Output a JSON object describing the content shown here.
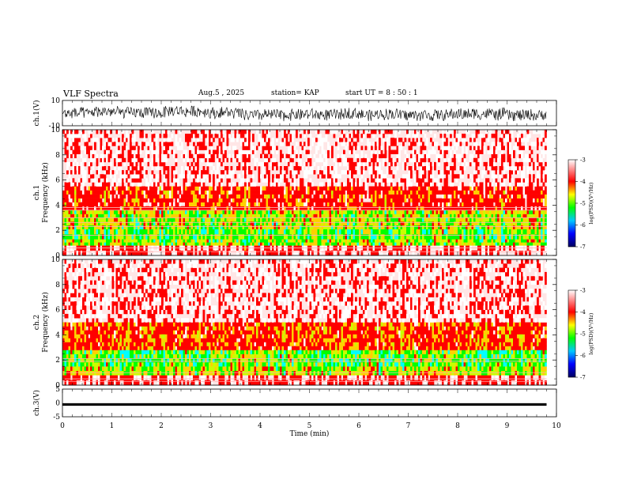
{
  "header": {
    "title": "VLF Spectra",
    "date": "Aug.5 , 2025",
    "station": "station= KAP",
    "start_ut": "start UT = 8 : 50 : 1"
  },
  "chart_data": [
    {
      "type": "line",
      "name": "channel 1 waveform",
      "ylabel": "ch.1(V)",
      "ylim": [
        -10,
        10
      ],
      "yticks": [
        "10",
        "-10"
      ],
      "xlim": [
        0,
        10
      ],
      "xlabel": "",
      "description_values": "dense noisy waveform, amplitude roughly between -6 and 6 V, data ending near 9.8 min"
    },
    {
      "type": "heatmap",
      "name": "ch.1 spectrogram",
      "ylabel": "ch.1 Frequency (kHz)",
      "ylim": [
        0,
        10
      ],
      "yticks": [
        "0",
        "2",
        "4",
        "6",
        "8",
        "10"
      ],
      "xlim": [
        0,
        10
      ],
      "data_end_min": 9.8,
      "bands_khz": [
        {
          "from": 0.0,
          "to": 0.8,
          "level": -3.6
        },
        {
          "from": 0.8,
          "to": 1.3,
          "level": -4.8
        },
        {
          "from": 1.3,
          "to": 2.1,
          "level": -4.9
        },
        {
          "from": 2.1,
          "to": 3.6,
          "level": -4.7
        },
        {
          "from": 3.6,
          "to": 5.5,
          "level": -4.0
        },
        {
          "from": 5.5,
          "to": 10.0,
          "level": -3.3
        }
      ],
      "colorbar": {
        "label": "log(PSD)(V²/Hz)",
        "range": [
          -7,
          -3
        ],
        "ticks": [
          "-3",
          "-4",
          "-5",
          "-6",
          "-7"
        ]
      }
    },
    {
      "type": "heatmap",
      "name": "ch.2 spectrogram",
      "ylabel": "ch.2 Frequency (kHz)",
      "ylim": [
        0,
        10
      ],
      "yticks": [
        "0",
        "2",
        "4",
        "6",
        "8",
        "10"
      ],
      "xlim": [
        0,
        10
      ],
      "data_end_min": 9.8,
      "bands_khz": [
        {
          "from": 0.0,
          "to": 0.8,
          "level": -3.6
        },
        {
          "from": 0.8,
          "to": 1.5,
          "level": -4.6
        },
        {
          "from": 1.5,
          "to": 2.8,
          "level": -4.9
        },
        {
          "from": 2.8,
          "to": 5.0,
          "level": -4.1
        },
        {
          "from": 5.0,
          "to": 10.0,
          "level": -3.3
        }
      ],
      "colorbar": {
        "label": "log(PSD)(V²/Hz)",
        "range": [
          -7,
          -3
        ],
        "ticks": [
          "-3",
          "-4",
          "-5",
          "-6",
          "-7"
        ]
      }
    },
    {
      "type": "line",
      "name": "channel 3 waveform",
      "ylabel": "ch.3(V)",
      "ylim": [
        -5,
        5
      ],
      "yticks": [
        "5",
        "0",
        "-5"
      ],
      "xlim": [
        0,
        10
      ],
      "xlabel": "Time (min)",
      "xticks": [
        "0",
        "1",
        "2",
        "3",
        "4",
        "5",
        "6",
        "7",
        "8",
        "9",
        "10"
      ],
      "description_values": "thin constant band near -0.5 V"
    }
  ],
  "colors": {
    "colormap": [
      "#000080",
      "#0000ff",
      "#00ffff",
      "#00ff00",
      "#ffff00",
      "#ff0000",
      "#ffffff"
    ]
  }
}
